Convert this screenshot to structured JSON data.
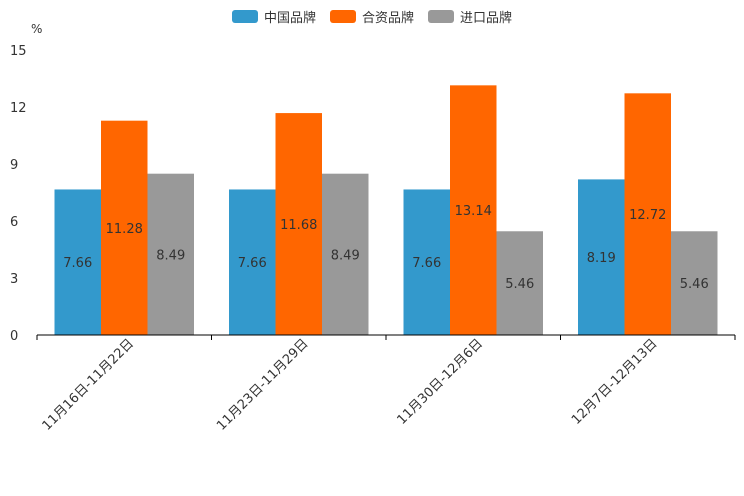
{
  "chart_data": {
    "type": "bar",
    "title": "",
    "ylabel": "%",
    "xlabel": "",
    "ylim": [
      0,
      15
    ],
    "yticks": [
      "0",
      "3",
      "6",
      "9",
      "12",
      "15"
    ],
    "categories": [
      "11月16日-11月22日",
      "11月23日-11月29日",
      "11月30日-12月6日",
      "12月7日-12月13日"
    ],
    "series": [
      {
        "name": "中国品牌",
        "color": "#3399CC",
        "values": [
          7.66,
          7.66,
          7.66,
          8.19
        ]
      },
      {
        "name": "合资品牌",
        "color": "#FF6600",
        "values": [
          11.28,
          11.68,
          13.14,
          12.72
        ]
      },
      {
        "name": "进口品牌",
        "color": "#999999",
        "values": [
          8.49,
          8.49,
          5.46,
          5.46
        ]
      }
    ]
  }
}
